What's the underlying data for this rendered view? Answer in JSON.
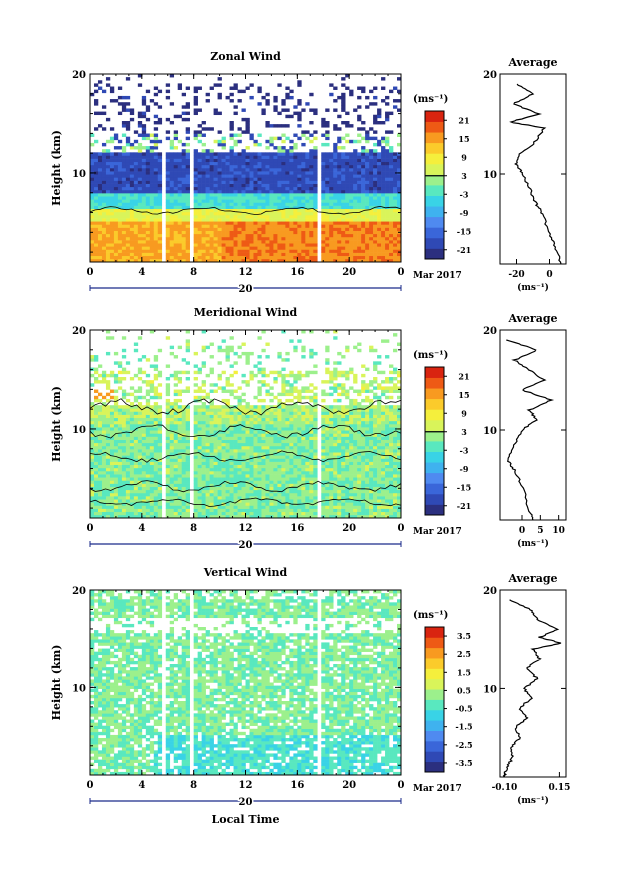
{
  "chart_data": [
    {
      "type": "heatmap",
      "title": "Zonal Wind",
      "ylabel": "Height (km)",
      "ylim": [
        1,
        20
      ],
      "yticks": [
        "10",
        "20"
      ],
      "xticks": [
        "0",
        "4",
        "8",
        "12",
        "16",
        "20",
        "0"
      ],
      "xlim": [
        0,
        24
      ],
      "date_day": "20",
      "date_month": "Mar 2017",
      "colorbar": {
        "unit": "(ms⁻¹)",
        "ticks": [
          "21",
          "15",
          "9",
          "3",
          "-3",
          "-9",
          "-15",
          "-21"
        ],
        "range": [
          -24,
          24
        ],
        "colors": [
          "#2b2f7f",
          "#2f49b5",
          "#3a66d9",
          "#4f8af0",
          "#3fb2ef",
          "#39d3e6",
          "#59e8bf",
          "#9cf08c",
          "#d9f45a",
          "#f5ef3c",
          "#fbcb2b",
          "#f89a20",
          "#ee5a15",
          "#d92410"
        ],
        "zero_line": 3
      },
      "profile_values": [
        [
          -20,
          19
        ],
        [
          -10,
          18
        ],
        [
          -22,
          17
        ],
        [
          -6,
          16
        ],
        [
          -24,
          15.2
        ],
        [
          -3,
          14.6
        ],
        [
          -10,
          13
        ],
        [
          -18,
          12
        ],
        [
          -20,
          11
        ],
        [
          -16,
          10
        ],
        [
          -12,
          8.5
        ],
        [
          -8,
          7
        ],
        [
          -4,
          6
        ],
        [
          0,
          4
        ],
        [
          4,
          2.5
        ],
        [
          7,
          1
        ]
      ],
      "profile": {
        "title": "Average",
        "xticks": [
          "-20",
          "0"
        ],
        "xlim": [
          -30,
          10
        ],
        "xunit": "(ms⁻¹)",
        "yticks": [
          "10",
          "20"
        ]
      }
    },
    {
      "type": "heatmap",
      "title": "Meridional Wind",
      "ylabel": "Height (km)",
      "ylim": [
        1,
        20
      ],
      "yticks": [
        "10",
        "20"
      ],
      "xticks": [
        "0",
        "4",
        "8",
        "12",
        "16",
        "20",
        "0"
      ],
      "xlim": [
        0,
        24
      ],
      "date_day": "20",
      "date_month": "Mar 2017",
      "colorbar": {
        "unit": "(ms⁻¹)",
        "ticks": [
          "21",
          "15",
          "9",
          "3",
          "-3",
          "-9",
          "-15",
          "-21"
        ],
        "range": [
          -24,
          24
        ],
        "colors": [
          "#2b2f7f",
          "#2f49b5",
          "#3a66d9",
          "#4f8af0",
          "#3fb2ef",
          "#39d3e6",
          "#59e8bf",
          "#9cf08c",
          "#d9f45a",
          "#f5ef3c",
          "#fbcb2b",
          "#f89a20",
          "#ee5a15",
          "#d92410"
        ],
        "zero_line": 3
      },
      "profile_values": [
        [
          -4,
          19
        ],
        [
          4,
          18
        ],
        [
          -2,
          17
        ],
        [
          2,
          16
        ],
        [
          6,
          15
        ],
        [
          0,
          14
        ],
        [
          8,
          13
        ],
        [
          2,
          12
        ],
        [
          4,
          11
        ],
        [
          0,
          10
        ],
        [
          -2,
          8.5
        ],
        [
          -4,
          7
        ],
        [
          -2,
          6
        ],
        [
          0,
          4.5
        ],
        [
          2,
          2
        ],
        [
          3,
          1
        ]
      ],
      "profile": {
        "title": "Average",
        "xticks": [
          "0",
          "5",
          "10"
        ],
        "xlim": [
          -6,
          12
        ],
        "xunit": "(ms⁻¹)",
        "yticks": [
          "10",
          "20"
        ]
      }
    },
    {
      "type": "heatmap",
      "title": "Vertical Wind",
      "ylabel": "Height (km)",
      "ylim": [
        1,
        20
      ],
      "yticks": [
        "10",
        "20"
      ],
      "xticks": [
        "0",
        "4",
        "8",
        "12",
        "16",
        "20",
        "0"
      ],
      "xlim": [
        0,
        24
      ],
      "date_day": "20",
      "date_month": "Mar 2017",
      "xlabel": "Local Time",
      "colorbar": {
        "unit": "(ms⁻¹)",
        "ticks": [
          "3.5",
          "2.5",
          "1.5",
          "0.5",
          "-0.5",
          "-1.5",
          "-2.5",
          "-3.5"
        ],
        "range": [
          -4,
          4
        ],
        "colors": [
          "#2b2f7f",
          "#2f49b5",
          "#3a66d9",
          "#4f8af0",
          "#3fb2ef",
          "#39d3e6",
          "#59e8bf",
          "#9cf08c",
          "#d9f45a",
          "#f5ef3c",
          "#fbcb2b",
          "#f89a20",
          "#ee5a15",
          "#d92410"
        ],
        "zero_line": null
      },
      "profile_values": [
        [
          -0.08,
          19
        ],
        [
          0.02,
          18
        ],
        [
          0.05,
          17
        ],
        [
          0.14,
          16
        ],
        [
          0.06,
          15.2
        ],
        [
          0.16,
          14.6
        ],
        [
          0.03,
          14
        ],
        [
          0.06,
          13
        ],
        [
          0.0,
          12
        ],
        [
          0.05,
          11
        ],
        [
          -0.01,
          10
        ],
        [
          0.02,
          9
        ],
        [
          -0.03,
          8
        ],
        [
          0.0,
          7
        ],
        [
          -0.05,
          6
        ],
        [
          -0.03,
          5
        ],
        [
          -0.07,
          4
        ],
        [
          -0.06,
          3
        ],
        [
          -0.09,
          2
        ],
        [
          -0.1,
          1
        ]
      ],
      "profile": {
        "title": "Average",
        "xticks": [
          "-0.10",
          "0.15"
        ],
        "xlim": [
          -0.12,
          0.18
        ],
        "xunit": "(ms⁻¹)",
        "yticks": [
          "10",
          "20"
        ]
      }
    }
  ]
}
